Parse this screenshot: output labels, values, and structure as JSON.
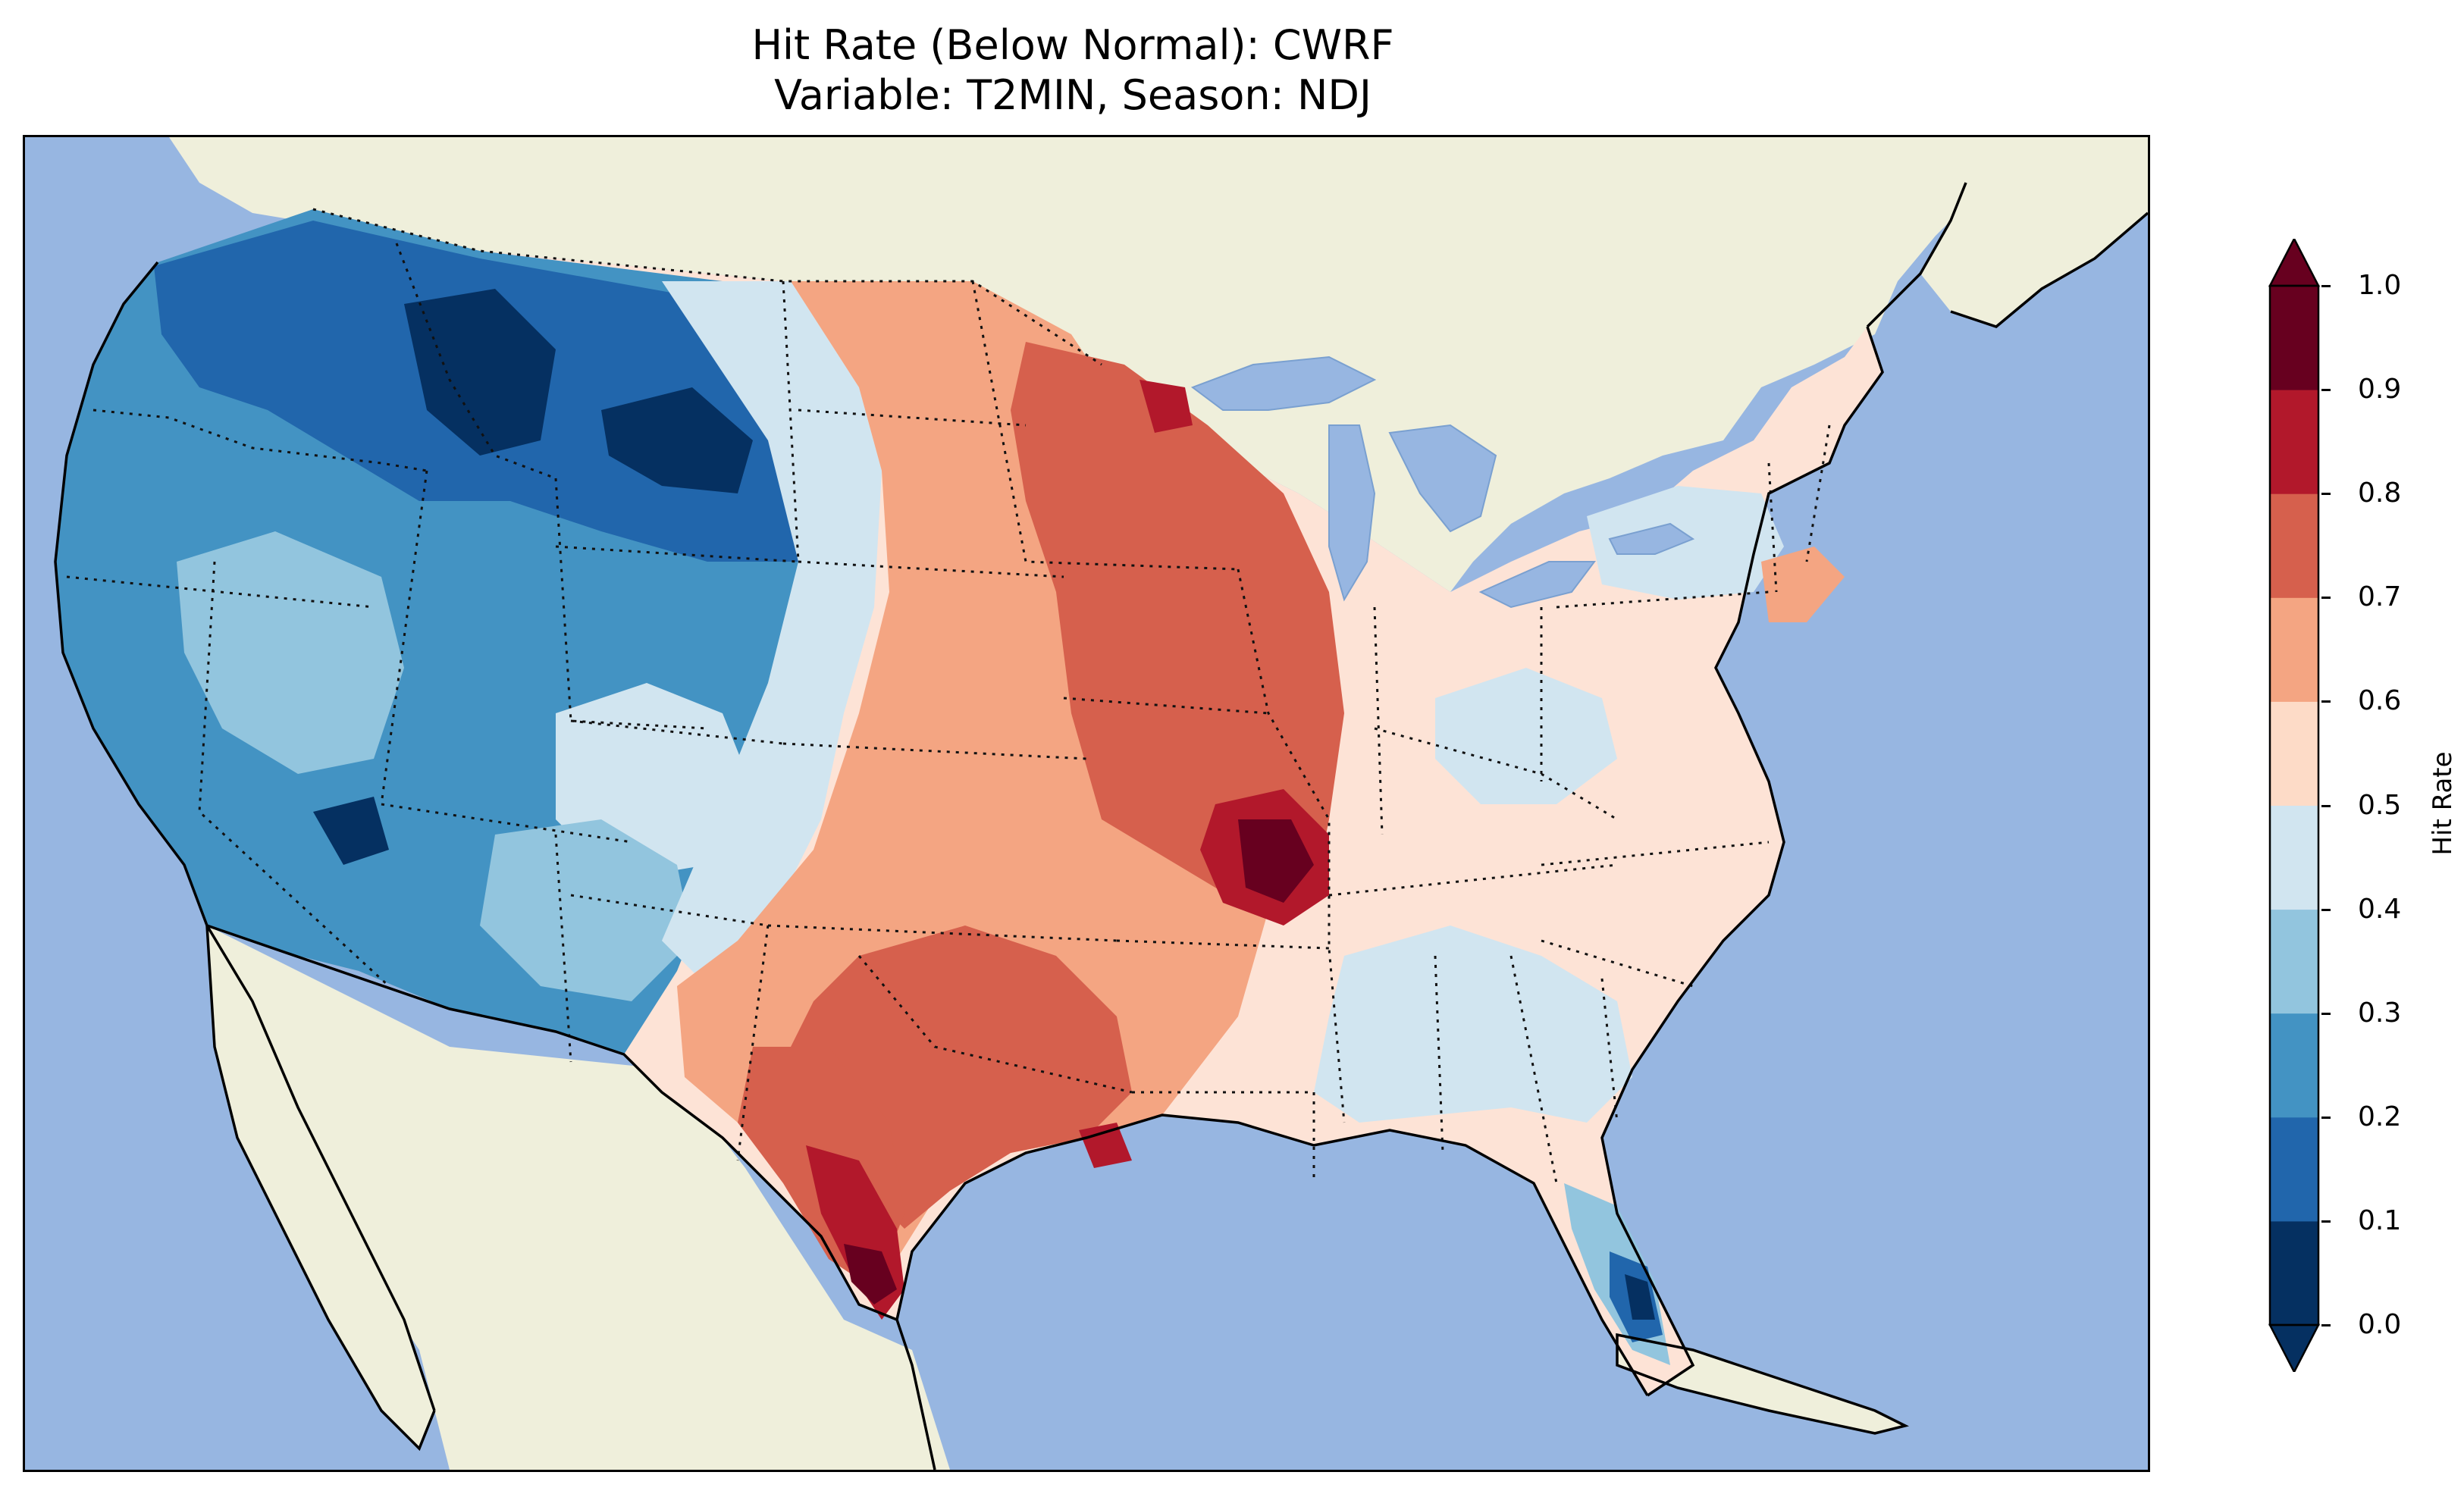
{
  "title": {
    "line1": "Hit Rate (Below Normal): CWRF",
    "line2": "Variable: T2MIN, Season: NDJ"
  },
  "map": {
    "projection": "Lambert Conformal (CONUS)",
    "colors": {
      "ocean": "#97b6e1",
      "land": "#efefdb",
      "coast": "#000000"
    }
  },
  "colorbar": {
    "label": "Hit Rate",
    "ticks": [
      "0.0",
      "0.1",
      "0.2",
      "0.3",
      "0.4",
      "0.5",
      "0.6",
      "0.7",
      "0.8",
      "0.9",
      "1.0"
    ],
    "bins": [
      {
        "range": "0.0-0.1",
        "color": "#053061"
      },
      {
        "range": "0.1-0.2",
        "color": "#2166ac"
      },
      {
        "range": "0.2-0.3",
        "color": "#4393c3"
      },
      {
        "range": "0.3-0.4",
        "color": "#92c5de"
      },
      {
        "range": "0.4-0.5",
        "color": "#d1e5f0"
      },
      {
        "range": "0.5-0.6",
        "color": "#fddbc7"
      },
      {
        "range": "0.6-0.7",
        "color": "#f4a582"
      },
      {
        "range": "0.7-0.8",
        "color": "#d6604d"
      },
      {
        "range": "0.8-0.9",
        "color": "#b2182b"
      },
      {
        "range": "0.9-1.0",
        "color": "#67001f"
      }
    ],
    "extend": "both"
  }
}
